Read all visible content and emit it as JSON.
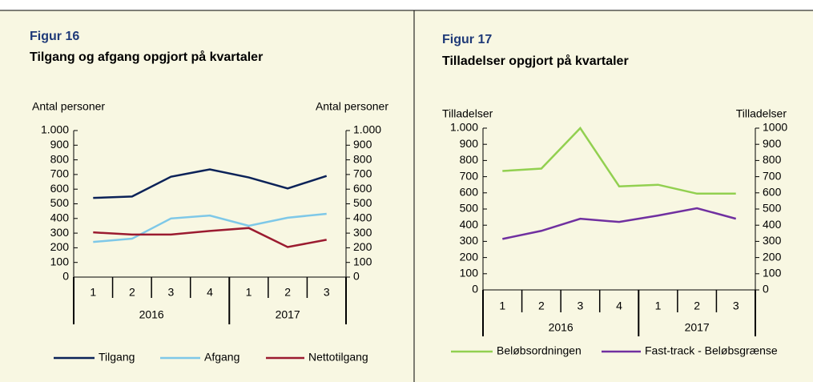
{
  "chart_data": [
    {
      "type": "line",
      "title": "Figur 16",
      "subtitle": "Tilgang og afgang opgjort på kvartaler",
      "y_label": "Antal personer",
      "y2_label": "Antal personer",
      "categories": [
        "1",
        "2",
        "3",
        "4",
        "1",
        "2",
        "3"
      ],
      "category_groups": [
        "2016",
        "2016",
        "2016",
        "2016",
        "2017",
        "2017",
        "2017"
      ],
      "series": [
        {
          "name": "Tilgang",
          "color": "#0b2258",
          "values": [
            540,
            550,
            685,
            735,
            680,
            605,
            690
          ]
        },
        {
          "name": "Afgang",
          "color": "#7ec8e8",
          "values": [
            240,
            262,
            400,
            420,
            350,
            405,
            432
          ]
        },
        {
          "name": "Nettotilgang",
          "color": "#9b1b30",
          "values": [
            305,
            290,
            290,
            315,
            335,
            205,
            255
          ]
        }
      ],
      "ylim": [
        0,
        1000
      ],
      "yticks": [
        0,
        100,
        200,
        300,
        400,
        500,
        600,
        700,
        800,
        900,
        {
          "value": 1000,
          "label": "1.000"
        }
      ],
      "y2lim": [
        0,
        1000
      ],
      "y2ticks": [
        0,
        100,
        200,
        300,
        400,
        500,
        600,
        700,
        800,
        900,
        {
          "value": 1000,
          "label": "1.000"
        }
      ],
      "legend": "bottom"
    },
    {
      "type": "line",
      "title": "Figur 17",
      "subtitle": "Tilladelser opgjort på kvartaler",
      "y_label": "Tilladelser",
      "y2_label": "Tilladelser",
      "categories": [
        "1",
        "2",
        "3",
        "4",
        "1",
        "2",
        "3"
      ],
      "category_groups": [
        "2016",
        "2016",
        "2016",
        "2016",
        "2017",
        "2017",
        "2017"
      ],
      "series": [
        {
          "name": "Beløbsordningen",
          "color": "#92d050",
          "values": [
            735,
            750,
            1000,
            640,
            650,
            595,
            595
          ]
        },
        {
          "name": "Fast-track - Beløbsgrænse",
          "color": "#7030a0",
          "values": [
            315,
            365,
            440,
            420,
            460,
            505,
            440
          ]
        }
      ],
      "ylim": [
        0,
        1000
      ],
      "yticks": [
        0,
        100,
        200,
        300,
        400,
        500,
        600,
        700,
        800,
        900,
        {
          "value": 1000,
          "label": "1.000"
        }
      ],
      "y2lim": [
        0,
        1000
      ],
      "y2ticks": [
        0,
        100,
        200,
        300,
        400,
        500,
        600,
        700,
        800,
        900,
        1000
      ],
      "legend": "bottom"
    }
  ]
}
